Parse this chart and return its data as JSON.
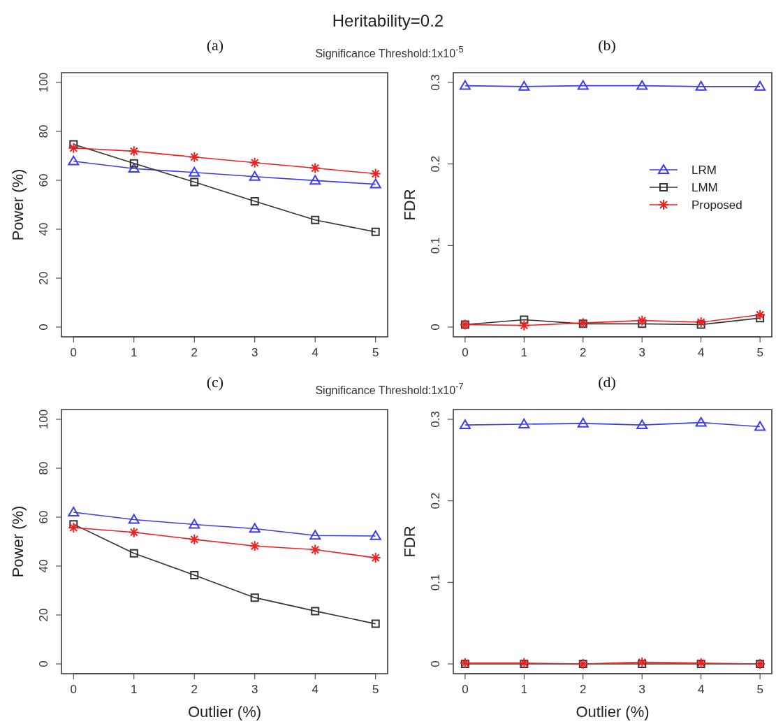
{
  "chart_data": [
    {
      "type": "line",
      "title": "(a)",
      "annotations": [
        "Heritability=0.2",
        "Significance Threshold:1x10$^{-5}$"
      ],
      "ylabel": "Power (%)",
      "x": [
        0,
        1,
        2,
        3,
        4,
        5
      ],
      "xlim": [
        -0.2,
        5.2
      ],
      "xticks": [
        0,
        1,
        2,
        3,
        4,
        5
      ],
      "ylim": [
        -4,
        104
      ],
      "yticks": [
        0,
        20,
        40,
        60,
        80,
        100
      ],
      "grid": false,
      "legend": false,
      "line_style": "solid",
      "series": [
        {
          "color": "#3b3bf0",
          "marker": "triangle",
          "values": [
            67.8,
            64.8,
            63.2,
            61.5,
            59.9,
            58.4
          ]
        },
        {
          "color": "#333333",
          "marker": "square",
          "values": [
            74.7,
            66.9,
            59.3,
            51.4,
            43.8,
            38.9
          ]
        },
        {
          "color": "#f02020",
          "marker": "cross",
          "values": [
            73.2,
            71.9,
            69.5,
            67.2,
            65.0,
            62.7
          ]
        }
      ]
    },
    {
      "type": "line",
      "title": "(b)",
      "ylabel": "FDR",
      "x": [
        0,
        1,
        2,
        3,
        4,
        5
      ],
      "xlim": [
        -0.2,
        5.2
      ],
      "xticks": [
        0,
        1,
        2,
        3,
        4,
        5
      ],
      "ylim": [
        -0.012,
        0.312
      ],
      "yticks": [
        0,
        0.1,
        0.2,
        0.3
      ],
      "grid": false,
      "legend": "right",
      "line_style": "solid",
      "series": [
        {
          "name": "LRM",
          "color": "#3b3bf0",
          "marker": "triangle",
          "values": [
            0.296,
            0.295,
            0.296,
            0.296,
            0.295,
            0.295
          ]
        },
        {
          "name": "LMM",
          "color": "#333333",
          "marker": "square",
          "values": [
            0.003,
            0.009,
            0.004,
            0.004,
            0.003,
            0.011
          ]
        },
        {
          "name": "Proposed",
          "color": "#f02020",
          "marker": "cross",
          "values": [
            0.003,
            0.002,
            0.005,
            0.008,
            0.006,
            0.015
          ]
        }
      ]
    },
    {
      "type": "line",
      "title": "(c)",
      "annotations": [
        "Significance Threshold:1x10$^{-7}$"
      ],
      "xlabel": "Outlier (%)",
      "ylabel": "Power (%)",
      "x": [
        0,
        1,
        2,
        3,
        4,
        5
      ],
      "xlim": [
        -0.2,
        5.2
      ],
      "xticks": [
        0,
        1,
        2,
        3,
        4,
        5
      ],
      "ylim": [
        -4,
        104
      ],
      "yticks": [
        0,
        20,
        40,
        60,
        80,
        100
      ],
      "grid": false,
      "legend": false,
      "line_style": "solid",
      "series": [
        {
          "color": "#3b3bf0",
          "marker": "triangle",
          "values": [
            62.0,
            59.0,
            57.0,
            55.3,
            52.5,
            52.3
          ]
        },
        {
          "color": "#333333",
          "marker": "square",
          "values": [
            57.1,
            45.2,
            36.3,
            27.1,
            21.6,
            16.4
          ]
        },
        {
          "color": "#f02020",
          "marker": "cross",
          "values": [
            55.7,
            53.8,
            50.9,
            48.2,
            46.7,
            43.4
          ]
        }
      ]
    },
    {
      "type": "line",
      "title": "(d)",
      "xlabel": "Outlier (%)",
      "ylabel": "FDR",
      "x": [
        0,
        1,
        2,
        3,
        4,
        5
      ],
      "xlim": [
        -0.2,
        5.2
      ],
      "xticks": [
        0,
        1,
        2,
        3,
        4,
        5
      ],
      "ylim": [
        -0.012,
        0.312
      ],
      "yticks": [
        0,
        0.1,
        0.2,
        0.3
      ],
      "grid": false,
      "legend": false,
      "line_style": "solid",
      "series": [
        {
          "color": "#3b3bf0",
          "marker": "triangle",
          "values": [
            0.293,
            0.294,
            0.295,
            0.293,
            0.296,
            0.291
          ]
        },
        {
          "color": "#333333",
          "marker": "square",
          "values": [
            0,
            0,
            0,
            0,
            0,
            0
          ]
        },
        {
          "color": "#f02020",
          "marker": "cross",
          "values": [
            0.001,
            0.001,
            0,
            0.002,
            0.001,
            0
          ]
        }
      ]
    }
  ]
}
